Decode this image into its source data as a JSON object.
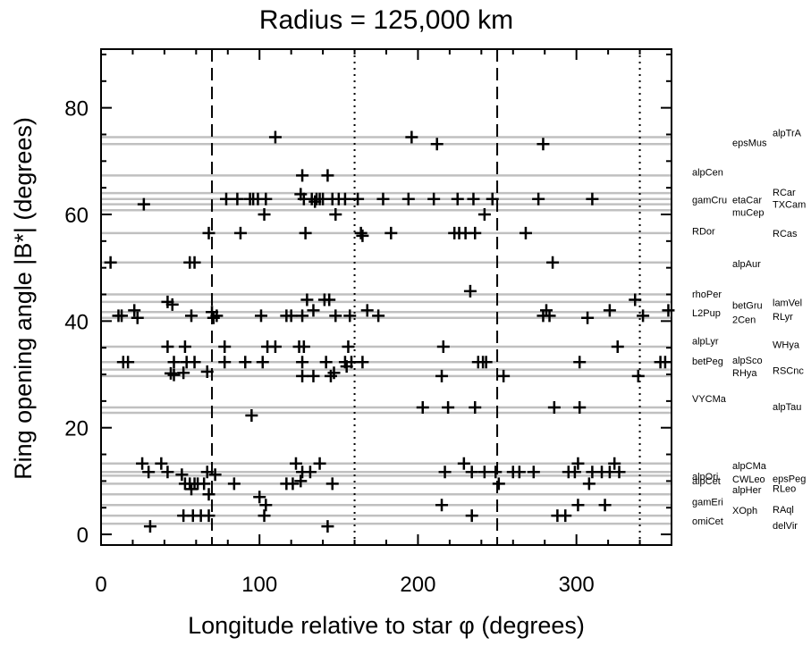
{
  "chart_data": {
    "type": "scatter",
    "title": "Radius = 125,000 km",
    "xlabel": "Longitude relative to star φ (degrees)",
    "ylabel": "Ring opening angle |B*| (degrees)",
    "xlim": [
      0,
      360
    ],
    "ylim": [
      -2,
      91
    ],
    "xticks": [
      0,
      100,
      200,
      300
    ],
    "yticks": [
      0,
      20,
      40,
      60,
      80
    ],
    "marker": "plus",
    "marker_color": "#000000",
    "reference_lines": {
      "dashed_x": [
        70,
        250
      ],
      "dotted_x": [
        160,
        340
      ],
      "horizontal_gray_y": [
        2.0,
        3.5,
        5.5,
        7.5,
        9.5,
        11.0,
        11.7,
        13.3,
        22.8,
        23.8,
        29.7,
        30.9,
        32.3,
        35.2,
        40.6,
        41.7,
        43.6,
        45.0,
        51.0,
        56.5,
        60.8,
        61.9,
        62.9,
        64.0,
        67.3,
        73.2,
        74.5
      ],
      "gray_color": "#c0c0c0"
    },
    "stars": [
      {
        "name": "alpTrA",
        "y": 75.3
      },
      {
        "name": "epsMus",
        "y": 73.5
      },
      {
        "name": "alpCen",
        "y": 68.0
      },
      {
        "name": "gamCru",
        "y": 62.8
      },
      {
        "name": "etaCar",
        "y": 62.8
      },
      {
        "name": "RCar",
        "y": 64.2
      },
      {
        "name": "TXCam",
        "y": 61.9
      },
      {
        "name": "muCep",
        "y": 60.4
      },
      {
        "name": "RDor",
        "y": 56.9
      },
      {
        "name": "RCas",
        "y": 56.5
      },
      {
        "name": "alpAur",
        "y": 50.8
      },
      {
        "name": "rhoPer",
        "y": 45.1
      },
      {
        "name": "betGru",
        "y": 43.0
      },
      {
        "name": "lamVel",
        "y": 43.5
      },
      {
        "name": "L2Pup",
        "y": 41.6
      },
      {
        "name": "2Cen",
        "y": 40.3
      },
      {
        "name": "RLyr",
        "y": 40.9
      },
      {
        "name": "alpLyr",
        "y": 36.3
      },
      {
        "name": "WHya",
        "y": 35.6
      },
      {
        "name": "betPeg",
        "y": 32.5
      },
      {
        "name": "alpSco",
        "y": 32.7
      },
      {
        "name": "RSCnc",
        "y": 30.8
      },
      {
        "name": "RHya",
        "y": 30.3
      },
      {
        "name": "VYCMa",
        "y": 25.5
      },
      {
        "name": "alpTau",
        "y": 24.0
      },
      {
        "name": "alpCMa",
        "y": 12.9
      },
      {
        "name": "alpOri",
        "y": 10.9
      },
      {
        "name": "CWLeo",
        "y": 10.4
      },
      {
        "name": "epsPeg",
        "y": 10.5
      },
      {
        "name": "alpCet",
        "y": 10.1
      },
      {
        "name": "alpHer",
        "y": 8.4
      },
      {
        "name": "RLeo",
        "y": 8.6
      },
      {
        "name": "gamEri",
        "y": 6.1
      },
      {
        "name": "XOph",
        "y": 4.5
      },
      {
        "name": "RAql",
        "y": 4.7
      },
      {
        "name": "omiCet",
        "y": 2.5
      },
      {
        "name": "delVir",
        "y": 1.7
      }
    ],
    "points": [
      [
        110,
        74.5
      ],
      [
        196,
        74.5
      ],
      [
        212,
        73.2
      ],
      [
        279,
        73.2
      ],
      [
        127,
        67.3
      ],
      [
        143,
        67.3
      ],
      [
        27,
        61.9
      ],
      [
        79,
        62.9
      ],
      [
        86,
        62.9
      ],
      [
        94,
        62.9
      ],
      [
        96,
        62.9
      ],
      [
        99,
        62.9
      ],
      [
        103,
        60.0
      ],
      [
        104,
        62.9
      ],
      [
        126,
        63.8
      ],
      [
        128,
        62.9
      ],
      [
        133,
        62.9
      ],
      [
        135,
        62.4
      ],
      [
        136,
        62.9
      ],
      [
        138,
        62.9
      ],
      [
        140,
        62.9
      ],
      [
        146,
        62.9
      ],
      [
        148,
        60.0
      ],
      [
        150,
        62.9
      ],
      [
        154,
        62.9
      ],
      [
        162,
        62.9
      ],
      [
        178,
        62.9
      ],
      [
        194,
        62.9
      ],
      [
        210,
        62.9
      ],
      [
        225,
        62.9
      ],
      [
        235,
        62.9
      ],
      [
        242,
        60.0
      ],
      [
        247,
        62.9
      ],
      [
        276,
        62.9
      ],
      [
        310,
        62.9
      ],
      [
        68,
        56.5
      ],
      [
        88,
        56.5
      ],
      [
        129,
        56.5
      ],
      [
        164,
        56.5
      ],
      [
        165,
        56.0
      ],
      [
        183,
        56.5
      ],
      [
        223,
        56.5
      ],
      [
        226,
        56.5
      ],
      [
        230,
        56.5
      ],
      [
        236,
        56.5
      ],
      [
        268,
        56.5
      ],
      [
        6,
        51.0
      ],
      [
        56,
        51.0
      ],
      [
        59,
        51.0
      ],
      [
        285,
        51.0
      ],
      [
        233,
        45.6
      ],
      [
        42,
        43.6
      ],
      [
        45,
        43.1
      ],
      [
        130,
        44.0
      ],
      [
        134,
        42.0
      ],
      [
        141,
        44.0
      ],
      [
        144,
        44.0
      ],
      [
        148,
        41.0
      ],
      [
        157,
        41.0
      ],
      [
        168,
        42.0
      ],
      [
        175,
        41.0
      ],
      [
        11,
        41.0
      ],
      [
        13,
        41.0
      ],
      [
        21,
        42.0
      ],
      [
        23,
        40.6
      ],
      [
        57,
        41.0
      ],
      [
        70,
        41.7
      ],
      [
        71,
        40.6
      ],
      [
        73,
        41.0
      ],
      [
        101,
        41.0
      ],
      [
        117,
        41.0
      ],
      [
        120,
        41.0
      ],
      [
        127,
        41.0
      ],
      [
        279,
        41.0
      ],
      [
        281,
        42.0
      ],
      [
        283,
        41.0
      ],
      [
        307,
        40.6
      ],
      [
        321,
        42.0
      ],
      [
        337,
        44.0
      ],
      [
        342,
        41.0
      ],
      [
        358,
        42.0
      ],
      [
        42,
        35.2
      ],
      [
        53,
        35.2
      ],
      [
        78,
        35.2
      ],
      [
        105,
        35.2
      ],
      [
        110,
        35.2
      ],
      [
        125,
        35.2
      ],
      [
        128,
        35.2
      ],
      [
        156,
        35.2
      ],
      [
        216,
        35.2
      ],
      [
        326,
        35.2
      ],
      [
        14,
        32.3
      ],
      [
        17,
        32.3
      ],
      [
        46,
        32.3
      ],
      [
        54,
        32.3
      ],
      [
        59,
        32.3
      ],
      [
        78,
        32.3
      ],
      [
        91,
        32.3
      ],
      [
        102,
        32.3
      ],
      [
        127,
        32.3
      ],
      [
        142,
        32.3
      ],
      [
        154,
        32.3
      ],
      [
        155,
        31.5
      ],
      [
        158,
        32.3
      ],
      [
        165,
        32.3
      ],
      [
        238,
        32.3
      ],
      [
        241,
        32.3
      ],
      [
        243,
        32.3
      ],
      [
        302,
        32.3
      ],
      [
        353,
        32.3
      ],
      [
        356,
        32.3
      ],
      [
        44,
        30.2
      ],
      [
        46,
        29.9
      ],
      [
        52,
        30.3
      ],
      [
        67,
        30.5
      ],
      [
        127,
        29.7
      ],
      [
        134,
        29.7
      ],
      [
        145,
        29.7
      ],
      [
        147,
        30.3
      ],
      [
        215,
        29.7
      ],
      [
        254,
        29.7
      ],
      [
        339,
        29.7
      ],
      [
        95,
        22.3
      ],
      [
        203,
        23.8
      ],
      [
        219,
        23.8
      ],
      [
        236,
        23.8
      ],
      [
        286,
        23.8
      ],
      [
        302,
        23.8
      ],
      [
        26,
        13.3
      ],
      [
        30,
        11.7
      ],
      [
        38,
        13.3
      ],
      [
        42,
        11.7
      ],
      [
        51,
        11.2
      ],
      [
        67,
        11.7
      ],
      [
        72,
        11.2
      ],
      [
        123,
        13.3
      ],
      [
        127,
        11.7
      ],
      [
        132,
        11.7
      ],
      [
        138,
        13.3
      ],
      [
        217,
        11.7
      ],
      [
        229,
        13.3
      ],
      [
        234,
        11.7
      ],
      [
        242,
        11.7
      ],
      [
        249,
        11.7
      ],
      [
        260,
        11.7
      ],
      [
        264,
        11.7
      ],
      [
        273,
        11.7
      ],
      [
        295,
        11.7
      ],
      [
        299,
        11.7
      ],
      [
        301,
        13.3
      ],
      [
        310,
        11.7
      ],
      [
        316,
        11.7
      ],
      [
        321,
        11.7
      ],
      [
        324,
        13.3
      ],
      [
        327,
        11.7
      ],
      [
        53,
        9.5
      ],
      [
        56,
        9.5
      ],
      [
        57,
        8.5
      ],
      [
        59,
        9.5
      ],
      [
        61,
        9.5
      ],
      [
        65,
        9.5
      ],
      [
        84,
        9.5
      ],
      [
        117,
        9.5
      ],
      [
        121,
        9.5
      ],
      [
        126,
        10.0
      ],
      [
        146,
        9.5
      ],
      [
        251,
        9.5
      ],
      [
        308,
        9.5
      ],
      [
        68,
        7.5
      ],
      [
        100,
        7.0
      ],
      [
        104,
        5.5
      ],
      [
        215,
        5.5
      ],
      [
        301,
        5.5
      ],
      [
        318,
        5.5
      ],
      [
        52,
        3.5
      ],
      [
        58,
        3.5
      ],
      [
        63,
        3.5
      ],
      [
        68,
        3.5
      ],
      [
        103,
        3.5
      ],
      [
        234,
        3.5
      ],
      [
        288,
        3.5
      ],
      [
        293,
        3.5
      ],
      [
        31,
        1.5
      ],
      [
        143,
        1.5
      ]
    ]
  }
}
